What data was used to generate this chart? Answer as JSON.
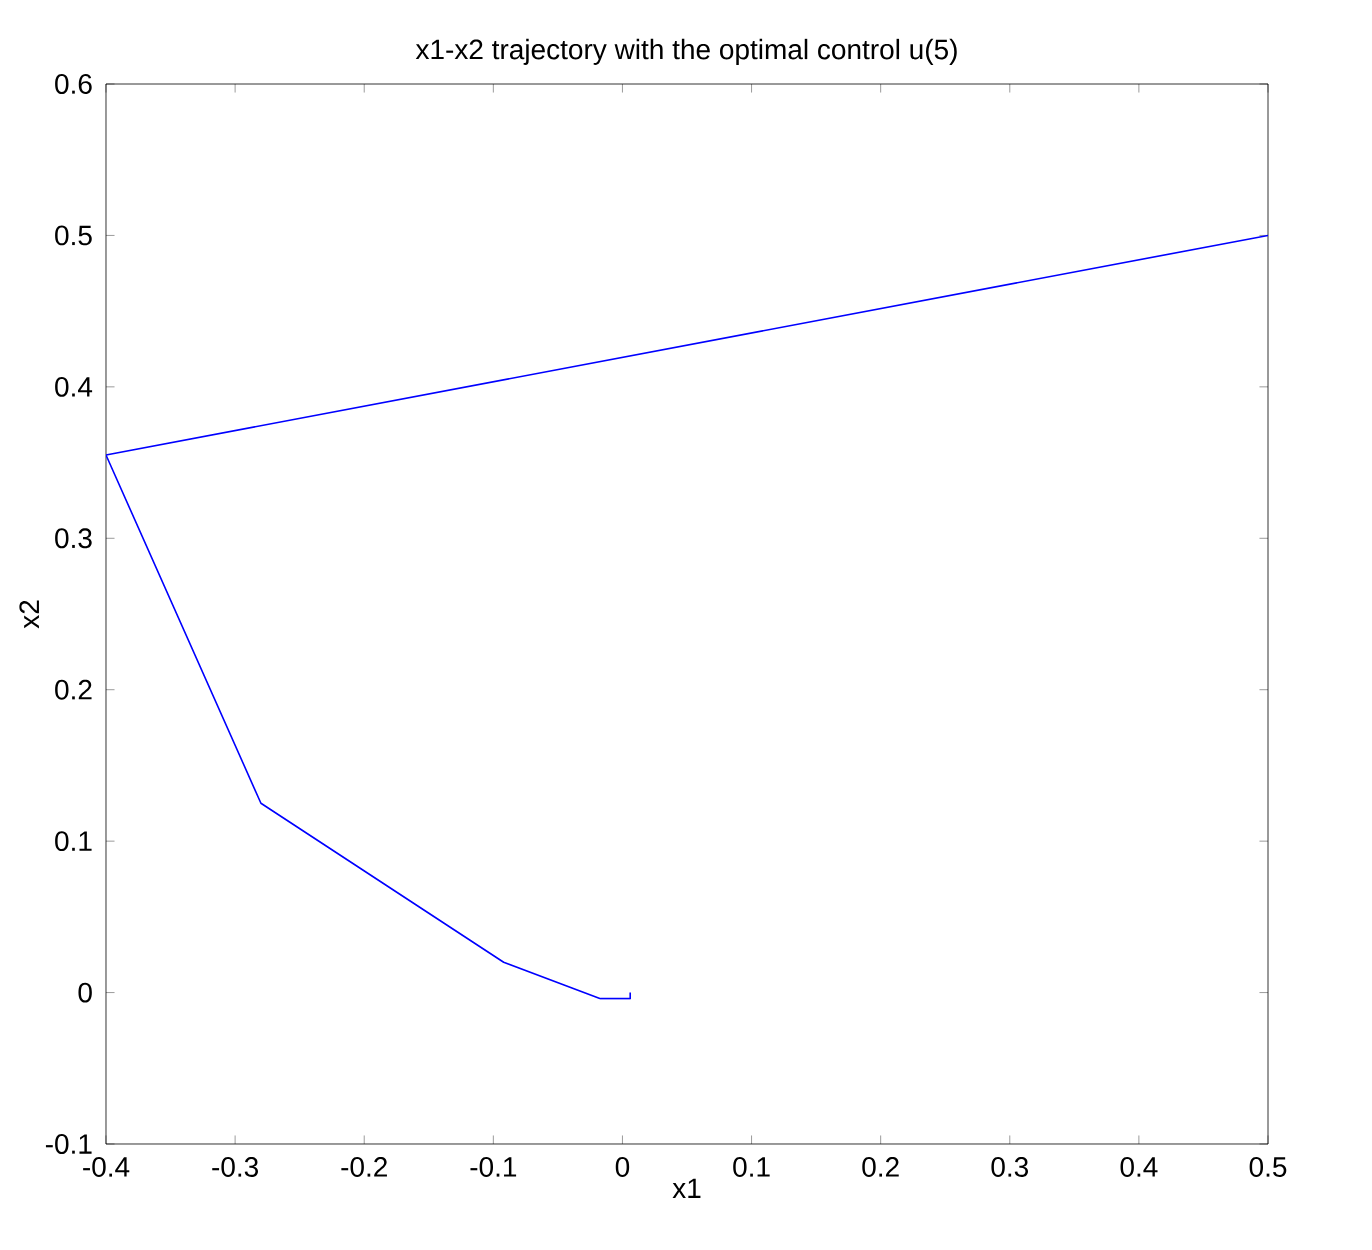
{
  "chart_data": {
    "type": "line",
    "title": "x1-x2 trajectory with the optimal control u(5)",
    "xlabel": "x1",
    "ylabel": "x2",
    "x": [
      0.5,
      -0.4,
      -0.28,
      -0.092,
      -0.017,
      0.006,
      0.006
    ],
    "series": [
      {
        "color": "#0000ff",
        "values": [
          0.5,
          0.355,
          0.125,
          0.02,
          -0.004,
          -0.004,
          0.0
        ]
      }
    ],
    "xlim": [
      -0.4,
      0.5
    ],
    "ylim": [
      -0.1,
      0.6
    ],
    "xticks": [
      -0.4,
      -0.3,
      -0.2,
      -0.1,
      0,
      0.1,
      0.2,
      0.3,
      0.4,
      0.5
    ],
    "yticks": [
      -0.1,
      0,
      0.1,
      0.2,
      0.3,
      0.4,
      0.5,
      0.6
    ],
    "grid": false,
    "marker": "none",
    "line_style": "solid"
  }
}
